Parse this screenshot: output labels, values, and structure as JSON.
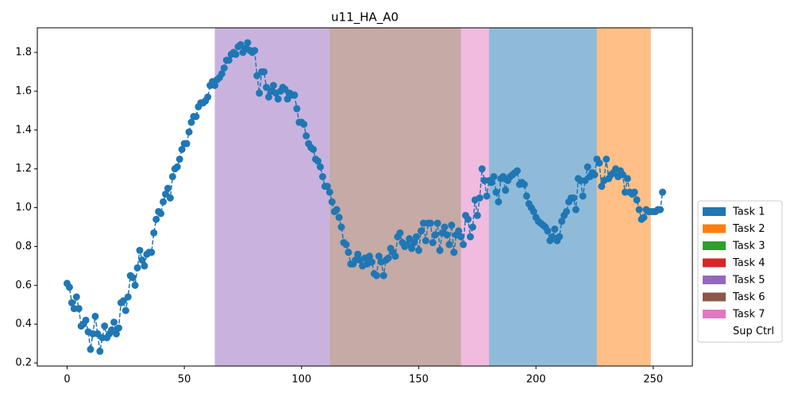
{
  "chart_data": {
    "type": "line",
    "title": "u11_HA_A0",
    "x": [
      0,
      1,
      2,
      3,
      4,
      5,
      6,
      7,
      8,
      9,
      10,
      11,
      12,
      13,
      14,
      15,
      16,
      17,
      18,
      19,
      20,
      21,
      22,
      23,
      24,
      25,
      26,
      27,
      28,
      29,
      30,
      31,
      32,
      33,
      34,
      35,
      36,
      37,
      38,
      39,
      40,
      41,
      42,
      43,
      44,
      45,
      46,
      47,
      48,
      49,
      50,
      51,
      52,
      53,
      54,
      55,
      56,
      57,
      58,
      59,
      60,
      61,
      62,
      63,
      64,
      65,
      66,
      67,
      68,
      69,
      70,
      71,
      72,
      73,
      74,
      75,
      76,
      77,
      78,
      79,
      80,
      81,
      82,
      83,
      84,
      85,
      86,
      87,
      88,
      89,
      90,
      91,
      92,
      93,
      94,
      95,
      96,
      97,
      98,
      99,
      100,
      101,
      102,
      103,
      104,
      105,
      106,
      107,
      108,
      109,
      110,
      111,
      112,
      113,
      114,
      115,
      116,
      117,
      118,
      119,
      120,
      121,
      122,
      123,
      124,
      125,
      126,
      127,
      128,
      129,
      130,
      131,
      132,
      133,
      134,
      135,
      136,
      137,
      138,
      139,
      140,
      141,
      142,
      143,
      144,
      145,
      146,
      147,
      148,
      149,
      150,
      151,
      152,
      153,
      154,
      155,
      156,
      157,
      158,
      159,
      160,
      161,
      162,
      163,
      164,
      165,
      166,
      167,
      168,
      169,
      170,
      171,
      172,
      173,
      174,
      175,
      176,
      177,
      178,
      179,
      180,
      181,
      182,
      183,
      184,
      185,
      186,
      187,
      188,
      189,
      190,
      191,
      192,
      193,
      194,
      195,
      196,
      197,
      198,
      199,
      200,
      201,
      202,
      203,
      204,
      205,
      206,
      207,
      208,
      209,
      210,
      211,
      212,
      213,
      214,
      215,
      216,
      217,
      218,
      219,
      220,
      221,
      222,
      223,
      224,
      225,
      226,
      227,
      228,
      229,
      230,
      231,
      232,
      233,
      234,
      235,
      236,
      237,
      238,
      239,
      240,
      241,
      242,
      243,
      244,
      245,
      246,
      247,
      248,
      249,
      250,
      251,
      252,
      253,
      254
    ],
    "series": [
      {
        "color": "#1f77b4",
        "values": [
          0.61,
          0.59,
          0.51,
          0.48,
          0.54,
          0.48,
          0.39,
          0.4,
          0.42,
          0.36,
          0.27,
          0.35,
          0.44,
          0.35,
          0.26,
          0.33,
          0.39,
          0.33,
          0.35,
          0.37,
          0.41,
          0.35,
          0.38,
          0.51,
          0.52,
          0.47,
          0.54,
          0.65,
          0.64,
          0.6,
          0.69,
          0.78,
          0.73,
          0.7,
          0.76,
          0.77,
          0.77,
          0.87,
          0.94,
          0.98,
          0.97,
          1.03,
          1.07,
          1.1,
          1.05,
          1.16,
          1.2,
          1.21,
          1.25,
          1.3,
          1.33,
          1.33,
          1.39,
          1.44,
          1.47,
          1.47,
          1.52,
          1.54,
          1.54,
          1.55,
          1.57,
          1.63,
          1.65,
          1.63,
          1.66,
          1.67,
          1.69,
          1.72,
          1.76,
          1.76,
          1.79,
          1.8,
          1.79,
          1.83,
          1.84,
          1.8,
          1.82,
          1.85,
          1.81,
          1.8,
          1.81,
          1.68,
          1.59,
          1.7,
          1.7,
          1.62,
          1.57,
          1.6,
          1.63,
          1.59,
          1.56,
          1.6,
          1.62,
          1.61,
          1.56,
          1.59,
          1.58,
          1.58,
          1.51,
          1.44,
          1.44,
          1.43,
          1.37,
          1.33,
          1.31,
          1.3,
          1.25,
          1.24,
          1.21,
          1.16,
          1.11,
          1.11,
          1.08,
          1.03,
          0.98,
          0.99,
          0.95,
          0.9,
          0.82,
          0.81,
          0.77,
          0.71,
          0.71,
          0.73,
          0.76,
          0.73,
          0.7,
          0.74,
          0.71,
          0.75,
          0.72,
          0.66,
          0.65,
          0.75,
          0.72,
          0.65,
          0.73,
          0.74,
          0.79,
          0.77,
          0.75,
          0.85,
          0.87,
          0.82,
          0.8,
          0.81,
          0.84,
          0.79,
          0.82,
          0.85,
          0.78,
          0.88,
          0.92,
          0.83,
          0.92,
          0.92,
          0.82,
          0.86,
          0.92,
          0.78,
          0.87,
          0.9,
          0.86,
          0.81,
          0.91,
          0.77,
          0.86,
          0.88,
          0.85,
          0.81,
          0.96,
          0.94,
          0.85,
          0.9,
          1.04,
          0.96,
          1.05,
          1.2,
          1.14,
          1.06,
          1.14,
          1.13,
          1.16,
          1.08,
          1.03,
          1.15,
          1.16,
          1.09,
          1.14,
          1.16,
          1.17,
          1.18,
          1.19,
          1.12,
          1.13,
          1.12,
          1.06,
          1.02,
          1.0,
          0.98,
          0.95,
          0.93,
          0.92,
          0.91,
          0.9,
          0.88,
          0.83,
          0.85,
          0.89,
          0.83,
          0.85,
          0.93,
          0.96,
          0.98,
          1.03,
          1.05,
          1.05,
          0.99,
          1.15,
          1.14,
          1.06,
          1.14,
          1.21,
          1.16,
          1.18,
          1.17,
          1.25,
          1.23,
          1.11,
          1.14,
          1.25,
          1.15,
          1.17,
          1.18,
          1.2,
          1.16,
          1.19,
          1.17,
          1.08,
          1.15,
          1.08,
          1.07,
          1.08,
          1.04,
          0.99,
          0.94,
          0.95,
          0.99,
          0.98,
          0.98,
          0.98,
          0.98,
          0.99,
          0.99,
          1.08
        ]
      }
    ],
    "xlim": [
      -12.7,
      266.7
    ],
    "ylim": [
      0.184,
      1.927
    ],
    "xticks": [
      0,
      50,
      100,
      150,
      200,
      250
    ],
    "yticks": [
      0.2,
      0.4,
      0.6,
      0.8,
      {
        "value": 1,
        "label": "1.0"
      },
      1.2,
      1.4,
      1.6,
      1.8
    ],
    "span_alpha": 0.5,
    "legend_position": "right",
    "legend": [
      {
        "name": "Task 1",
        "color": "#1f77b4",
        "spans": [
          [
            180,
            226
          ]
        ]
      },
      {
        "name": "Task 2",
        "color": "#ff7f0e",
        "spans": [
          [
            226,
            249
          ]
        ]
      },
      {
        "name": "Task 3",
        "color": "#2ca02c",
        "spans": []
      },
      {
        "name": "Task 4",
        "color": "#d62728",
        "spans": []
      },
      {
        "name": "Task 5",
        "color": "#9467bd",
        "spans": [
          [
            63,
            112
          ]
        ]
      },
      {
        "name": "Task 6",
        "color": "#8c564b",
        "spans": [
          [
            112,
            168
          ]
        ]
      },
      {
        "name": "Task 7",
        "color": "#e377c2",
        "spans": [
          [
            168,
            180
          ]
        ]
      },
      {
        "name": "Sup Ctrl",
        "color": "#ffffff",
        "spans": []
      }
    ]
  }
}
